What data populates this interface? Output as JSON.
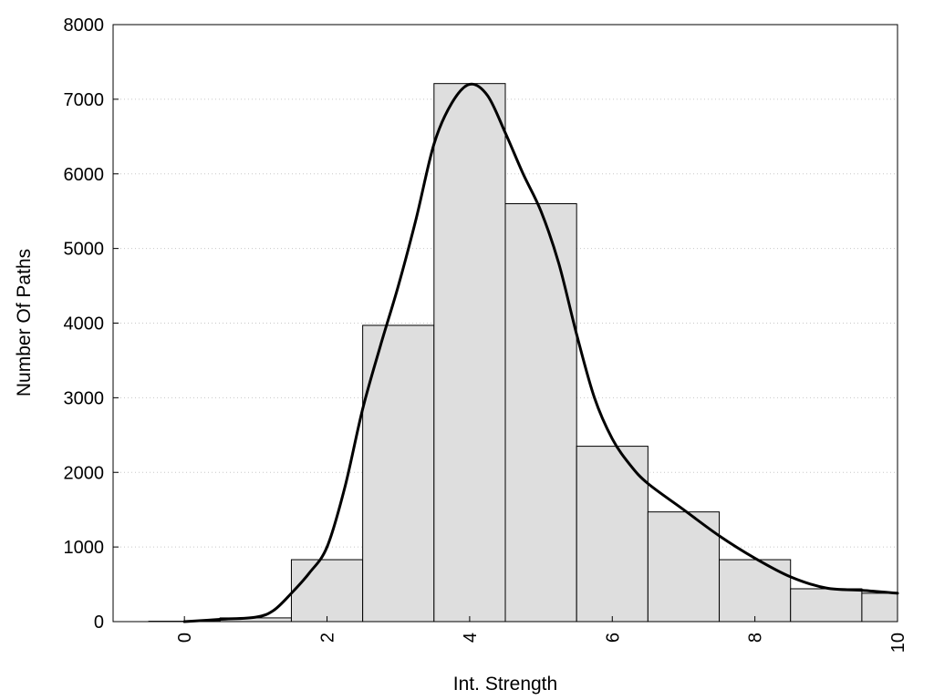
{
  "chart_data": {
    "type": "bar",
    "title": "",
    "xlabel": "Int. Strength",
    "ylabel": "Number Of Paths",
    "xlim": [
      -1,
      10
    ],
    "ylim": [
      0,
      8000
    ],
    "x_ticks": [
      0,
      2,
      4,
      6,
      8,
      10
    ],
    "y_ticks": [
      0,
      1000,
      2000,
      3000,
      4000,
      5000,
      6000,
      7000,
      8000
    ],
    "grid": "horizontal dotted",
    "legend": "none",
    "bars": {
      "x": [
        0,
        1,
        2,
        3,
        4,
        5,
        6,
        7,
        8,
        9,
        10
      ],
      "values": [
        5,
        50,
        830,
        3970,
        7210,
        5600,
        2350,
        1470,
        830,
        440,
        380
      ]
    },
    "curve": {
      "x": [
        0,
        0.5,
        1,
        1.25,
        1.5,
        1.75,
        2,
        2.25,
        2.5,
        2.75,
        3,
        3.25,
        3.5,
        3.75,
        4,
        4.25,
        4.5,
        4.75,
        5,
        5.25,
        5.5,
        5.75,
        6,
        6.25,
        6.5,
        7,
        7.5,
        8,
        8.5,
        9,
        9.5,
        10
      ],
      "values": [
        0,
        30,
        60,
        150,
        380,
        650,
        1000,
        1800,
        2850,
        3700,
        4500,
        5400,
        6400,
        6950,
        7200,
        7050,
        6550,
        6000,
        5500,
        4800,
        3850,
        3000,
        2450,
        2100,
        1850,
        1500,
        1150,
        850,
        600,
        450,
        420,
        380
      ]
    },
    "colors": {
      "bar_fill": "#dedede",
      "bar_stroke": "#000000",
      "curve": "#000000",
      "grid": "#c8c8c8"
    }
  }
}
